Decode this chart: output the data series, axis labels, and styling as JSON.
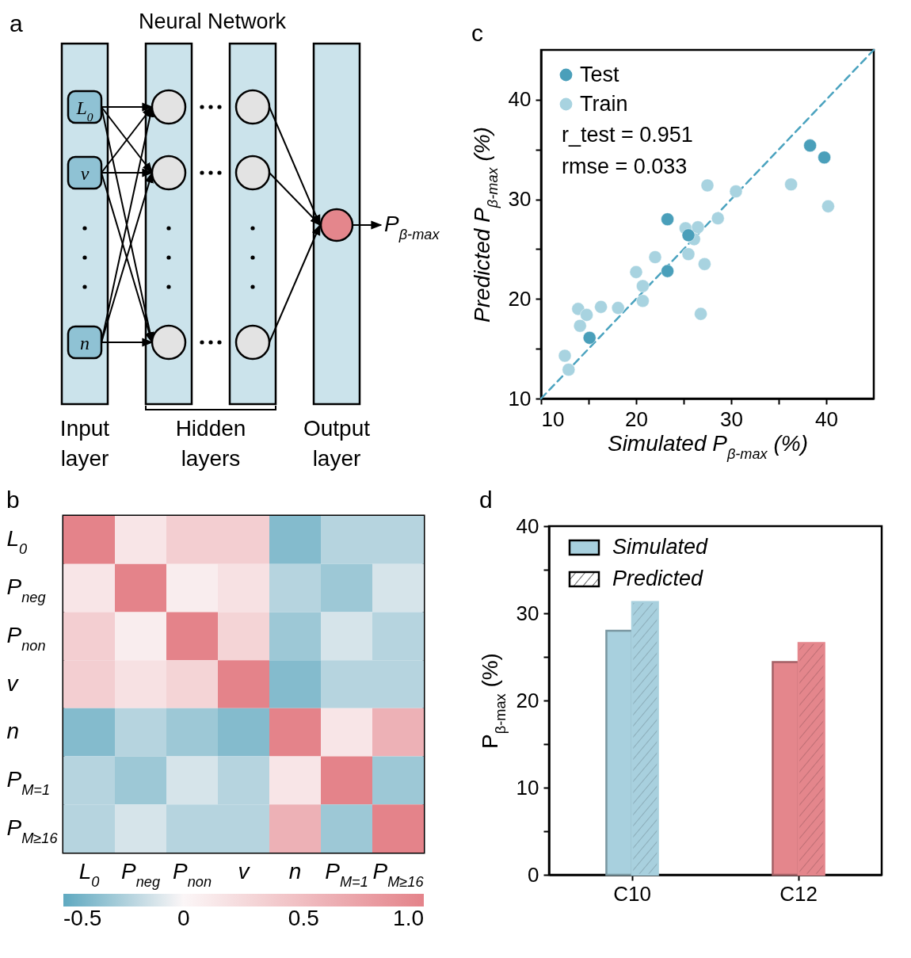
{
  "chart_data": [
    {
      "type": "other",
      "annotations": [
        "a",
        "Neural Network",
        "L$_{0}$",
        "v",
        "n",
        "P$_{β-max}$",
        "Input layer",
        "Hidden layers",
        "Output layer"
      ]
    },
    {
      "type": "scatter",
      "annotations": [
        "c",
        "r_test = 0.951",
        "rmse = 0.033"
      ],
      "xlabel": "Simulated P$_{β-max}$ (%)",
      "ylabel": "Predicted P$_{β-max}$ (%)",
      "xlim": [
        10,
        45
      ],
      "ylim": [
        10,
        45
      ],
      "xticks": [
        10,
        {
          "value": 15,
          "label": null
        },
        20,
        {
          "value": 25,
          "label": null
        },
        30,
        {
          "value": 35,
          "label": null
        },
        40
      ],
      "yticks": [
        10,
        {
          "value": 15,
          "label": null
        },
        20,
        {
          "value": 25,
          "label": null
        },
        30,
        {
          "value": 35,
          "label": null
        },
        40
      ],
      "legend": "top left",
      "marker": "circle",
      "series": [
        {
          "type": "line",
          "x": [
            10,
            45
          ],
          "values": [
            10,
            45
          ],
          "color": "#4ba3bf",
          "line_style": "dashed",
          "marker": "none"
        },
        {
          "name": "Test",
          "color": "#4a9fba",
          "x": [
            38.3,
            39.8,
            23.3,
            25.5,
            23.3,
            15.1
          ],
          "values": [
            35.4,
            34.2,
            28.0,
            26.4,
            22.8,
            16.1
          ]
        },
        {
          "name": "Train",
          "color": "#a8d3e0",
          "x": [
            27.5,
            30.5,
            36.3,
            40.2,
            28.6,
            25.2,
            26.5,
            26.1,
            25.5,
            27.2,
            22.0,
            20.0,
            20.7,
            20.7,
            26.8,
            18.1,
            16.3,
            13.9,
            14.8,
            14.1,
            12.5,
            12.9
          ],
          "values": [
            31.4,
            30.8,
            31.5,
            29.3,
            28.1,
            27.1,
            27.2,
            26.0,
            24.5,
            23.5,
            24.2,
            22.7,
            21.3,
            19.8,
            18.5,
            19.1,
            19.2,
            19.0,
            18.4,
            17.3,
            14.3,
            12.9
          ]
        }
      ]
    },
    {
      "type": "heatmap",
      "annotations": [
        "b"
      ],
      "categories": [
        "L$_{0}$",
        "P$_{neg}$",
        "P$_{non}$",
        "v",
        "n",
        "P$_{M=1}$",
        "P$_{M≥16}$"
      ],
      "y_categories": [
        "L$_{0}$",
        "P$_{neg}$",
        "P$_{non}$",
        "v",
        "n",
        "P$_{M=1}$",
        "P$_{M≥16}$"
      ],
      "cells": [
        [
          1,
          0.15,
          0.35,
          0.35,
          -0.38,
          -0.22,
          -0.22
        ],
        [
          0.15,
          1,
          0.08,
          0.18,
          -0.22,
          -0.3,
          -0.12
        ],
        [
          0.35,
          0.08,
          1,
          0.3,
          -0.3,
          -0.12,
          -0.22
        ],
        [
          0.35,
          0.18,
          0.3,
          1,
          -0.38,
          -0.22,
          -0.22
        ],
        [
          -0.38,
          -0.22,
          -0.3,
          -0.38,
          1,
          0.15,
          0.6
        ],
        [
          -0.22,
          -0.3,
          -0.12,
          -0.22,
          0.15,
          1,
          -0.3
        ],
        [
          -0.22,
          -0.12,
          -0.22,
          -0.22,
          0.6,
          -0.3,
          1
        ]
      ],
      "clim": [
        -0.5,
        1
      ],
      "cticks": [
        -0.5,
        0,
        0.5,
        {
          "value": 1,
          "label": "1.0"
        }
      ]
    },
    {
      "type": "bar",
      "annotations": [
        "d"
      ],
      "categories": [
        "C10",
        "C12"
      ],
      "ylabel": "P$_{β-max}$ (%)",
      "ylim": [
        0,
        40
      ],
      "yticks": [
        0,
        {
          "value": 5,
          "label": null
        },
        10,
        {
          "value": 15,
          "label": null
        },
        20,
        {
          "value": 25,
          "label": null
        },
        30,
        {
          "value": 35,
          "label": null
        },
        40
      ],
      "legend": "top left",
      "series": [
        {
          "name": "Simulated",
          "colors": [
            "#a8d0de",
            "#e4868c"
          ],
          "values": [
            28.0,
            24.4
          ]
        },
        {
          "name": "Predicted",
          "colors": [
            "#a8d0de",
            "#e4868c"
          ],
          "values": [
            31.3,
            26.6
          ]
        }
      ]
    }
  ]
}
